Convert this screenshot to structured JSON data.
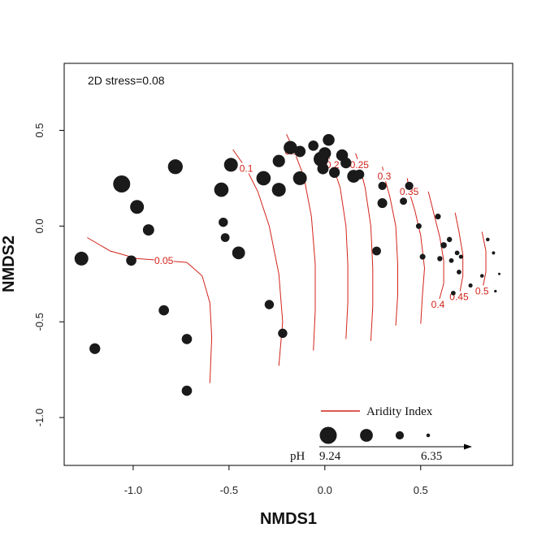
{
  "chart_data": {
    "type": "scatter",
    "xlabel": "NMDS1",
    "ylabel": "NMDS2",
    "xlim": [
      -1.36,
      0.98
    ],
    "ylim": [
      -1.25,
      0.85
    ],
    "xticks": [
      -1.0,
      -0.5,
      0.0,
      0.5
    ],
    "xtick_labels": [
      "-1.0",
      "-0.5",
      "0.0",
      "0.5"
    ],
    "yticks": [
      -1.0,
      -0.5,
      0.0,
      0.5
    ],
    "ytick_labels": [
      "-1.0",
      "-0.5",
      "0.0",
      "0.5"
    ],
    "annotation": "2D stress=0.08",
    "colors": {
      "points": "#1a1a1a",
      "contour": "#d2231a",
      "axis": "#000000"
    },
    "points": [
      {
        "x": -1.06,
        "y": 0.22,
        "ph": 9.24
      },
      {
        "x": -0.98,
        "y": 0.1,
        "ph": 8.6
      },
      {
        "x": -0.92,
        "y": -0.02,
        "ph": 8.1
      },
      {
        "x": -1.27,
        "y": -0.17,
        "ph": 8.6
      },
      {
        "x": -1.2,
        "y": -0.64,
        "ph": 8.0
      },
      {
        "x": -0.78,
        "y": 0.31,
        "ph": 8.8
      },
      {
        "x": -0.84,
        "y": -0.44,
        "ph": 7.9
      },
      {
        "x": -0.72,
        "y": -0.59,
        "ph": 7.9
      },
      {
        "x": -0.72,
        "y": -0.86,
        "ph": 7.9
      },
      {
        "x": -1.01,
        "y": -0.18,
        "ph": 7.9
      },
      {
        "x": -0.54,
        "y": 0.19,
        "ph": 8.7
      },
      {
        "x": -0.53,
        "y": 0.02,
        "ph": 7.7
      },
      {
        "x": -0.52,
        "y": -0.06,
        "ph": 7.6
      },
      {
        "x": -0.45,
        "y": -0.14,
        "ph": 8.4
      },
      {
        "x": -0.49,
        "y": 0.32,
        "ph": 8.6
      },
      {
        "x": -0.32,
        "y": 0.25,
        "ph": 8.7
      },
      {
        "x": -0.24,
        "y": 0.19,
        "ph": 8.6
      },
      {
        "x": -0.24,
        "y": 0.34,
        "ph": 8.3
      },
      {
        "x": -0.29,
        "y": -0.41,
        "ph": 7.7
      },
      {
        "x": -0.22,
        "y": -0.56,
        "ph": 7.7
      },
      {
        "x": -0.18,
        "y": 0.41,
        "ph": 8.5
      },
      {
        "x": -0.13,
        "y": 0.39,
        "ph": 8.1
      },
      {
        "x": -0.13,
        "y": 0.25,
        "ph": 8.6
      },
      {
        "x": -0.06,
        "y": 0.42,
        "ph": 7.9
      },
      {
        "x": -0.02,
        "y": 0.35,
        "ph": 8.8
      },
      {
        "x": 0.0,
        "y": 0.38,
        "ph": 8.3
      },
      {
        "x": 0.02,
        "y": 0.45,
        "ph": 8.2
      },
      {
        "x": -0.01,
        "y": 0.3,
        "ph": 8.1
      },
      {
        "x": 0.05,
        "y": 0.28,
        "ph": 8.0
      },
      {
        "x": 0.09,
        "y": 0.37,
        "ph": 8.2
      },
      {
        "x": 0.11,
        "y": 0.33,
        "ph": 8.0
      },
      {
        "x": 0.15,
        "y": 0.26,
        "ph": 8.4
      },
      {
        "x": 0.18,
        "y": 0.27,
        "ph": 7.8
      },
      {
        "x": 0.3,
        "y": 0.21,
        "ph": 7.5
      },
      {
        "x": 0.3,
        "y": 0.12,
        "ph": 7.8
      },
      {
        "x": 0.27,
        "y": -0.13,
        "ph": 7.6
      },
      {
        "x": 0.41,
        "y": 0.13,
        "ph": 7.3
      },
      {
        "x": 0.44,
        "y": 0.21,
        "ph": 7.5
      },
      {
        "x": 0.49,
        "y": 0.0,
        "ph": 7.0
      },
      {
        "x": 0.51,
        "y": -0.16,
        "ph": 7.0
      },
      {
        "x": 0.59,
        "y": 0.05,
        "ph": 7.0
      },
      {
        "x": 0.6,
        "y": -0.17,
        "ph": 6.9
      },
      {
        "x": 0.62,
        "y": -0.1,
        "ph": 7.1
      },
      {
        "x": 0.65,
        "y": -0.07,
        "ph": 6.9
      },
      {
        "x": 0.66,
        "y": -0.18,
        "ph": 6.8
      },
      {
        "x": 0.67,
        "y": -0.35,
        "ph": 6.8
      },
      {
        "x": 0.69,
        "y": -0.14,
        "ph": 6.8
      },
      {
        "x": 0.7,
        "y": -0.24,
        "ph": 6.8
      },
      {
        "x": 0.71,
        "y": -0.16,
        "ph": 6.7
      },
      {
        "x": 0.76,
        "y": -0.31,
        "ph": 6.7
      },
      {
        "x": 0.82,
        "y": -0.26,
        "ph": 6.6
      },
      {
        "x": 0.85,
        "y": -0.07,
        "ph": 6.6
      },
      {
        "x": 0.88,
        "y": -0.14,
        "ph": 6.5
      },
      {
        "x": 0.89,
        "y": -0.34,
        "ph": 6.4
      },
      {
        "x": 0.91,
        "y": -0.25,
        "ph": 6.35
      }
    ],
    "contours": [
      {
        "label": "0.05",
        "label_pos": [
          -0.84,
          -0.18
        ],
        "points": [
          [
            -1.24,
            -0.06
          ],
          [
            -1.12,
            -0.13
          ],
          [
            -0.98,
            -0.17
          ],
          [
            -0.84,
            -0.18
          ],
          [
            -0.72,
            -0.19
          ],
          [
            -0.64,
            -0.26
          ],
          [
            -0.6,
            -0.4
          ],
          [
            -0.59,
            -0.58
          ],
          [
            -0.6,
            -0.82
          ]
        ]
      },
      {
        "label": "0.1",
        "label_pos": [
          -0.41,
          0.3
        ],
        "points": [
          [
            -0.48,
            0.4
          ],
          [
            -0.41,
            0.3
          ],
          [
            -0.35,
            0.18
          ],
          [
            -0.29,
            0.0
          ],
          [
            -0.24,
            -0.25
          ],
          [
            -0.22,
            -0.5
          ],
          [
            -0.24,
            -0.73
          ]
        ]
      },
      {
        "label": "0.15",
        "label_pos": [
          -0.16,
          0.39
        ],
        "points": [
          [
            -0.2,
            0.48
          ],
          [
            -0.16,
            0.39
          ],
          [
            -0.11,
            0.26
          ],
          [
            -0.07,
            0.05
          ],
          [
            -0.05,
            -0.2
          ],
          [
            -0.05,
            -0.44
          ],
          [
            -0.06,
            -0.65
          ]
        ]
      },
      {
        "label": "0.2",
        "label_pos": [
          0.04,
          0.32
        ],
        "points": [
          [
            0.0,
            0.4
          ],
          [
            0.04,
            0.32
          ],
          [
            0.08,
            0.2
          ],
          [
            0.11,
            0.0
          ],
          [
            0.12,
            -0.2
          ],
          [
            0.12,
            -0.4
          ],
          [
            0.11,
            -0.59
          ]
        ]
      },
      {
        "label": "0.25",
        "label_pos": [
          0.18,
          0.32
        ],
        "points": [
          [
            0.16,
            0.38
          ],
          [
            0.18,
            0.32
          ],
          [
            0.21,
            0.2
          ],
          [
            0.24,
            0.0
          ],
          [
            0.25,
            -0.22
          ],
          [
            0.25,
            -0.42
          ],
          [
            0.24,
            -0.6
          ]
        ]
      },
      {
        "label": "0.3",
        "label_pos": [
          0.31,
          0.26
        ],
        "points": [
          [
            0.3,
            0.31
          ],
          [
            0.31,
            0.26
          ],
          [
            0.34,
            0.15
          ],
          [
            0.37,
            0.0
          ],
          [
            0.38,
            -0.2
          ],
          [
            0.38,
            -0.36
          ],
          [
            0.37,
            -0.52
          ]
        ]
      },
      {
        "label": "0.35",
        "label_pos": [
          0.44,
          0.18
        ],
        "points": [
          [
            0.43,
            0.25
          ],
          [
            0.44,
            0.18
          ],
          [
            0.47,
            0.08
          ],
          [
            0.5,
            -0.05
          ],
          [
            0.52,
            -0.22
          ],
          [
            0.51,
            -0.35
          ],
          [
            0.5,
            -0.51
          ]
        ]
      },
      {
        "label": "0.4",
        "label_pos": [
          0.59,
          -0.41
        ],
        "points": [
          [
            0.54,
            0.18
          ],
          [
            0.57,
            0.06
          ],
          [
            0.6,
            -0.06
          ],
          [
            0.62,
            -0.18
          ],
          [
            0.62,
            -0.3
          ],
          [
            0.59,
            -0.41
          ]
        ]
      },
      {
        "label": "0.45",
        "label_pos": [
          0.7,
          -0.37
        ],
        "points": [
          [
            0.68,
            0.07
          ],
          [
            0.7,
            -0.03
          ],
          [
            0.72,
            -0.15
          ],
          [
            0.72,
            -0.26
          ],
          [
            0.7,
            -0.37
          ]
        ]
      },
      {
        "label": "0.5",
        "label_pos": [
          0.82,
          -0.34
        ],
        "points": [
          [
            0.82,
            -0.03
          ],
          [
            0.84,
            -0.13
          ],
          [
            0.84,
            -0.24
          ],
          [
            0.82,
            -0.34
          ]
        ]
      }
    ],
    "legend": {
      "line_label": "Aridity Index",
      "size_label": "pH",
      "ph_max_label": "9.24",
      "ph_min_label": "6.35",
      "ph_max": 9.24,
      "ph_min": 6.35,
      "size_samples": [
        9.24,
        8.4,
        7.5,
        6.6
      ]
    }
  }
}
